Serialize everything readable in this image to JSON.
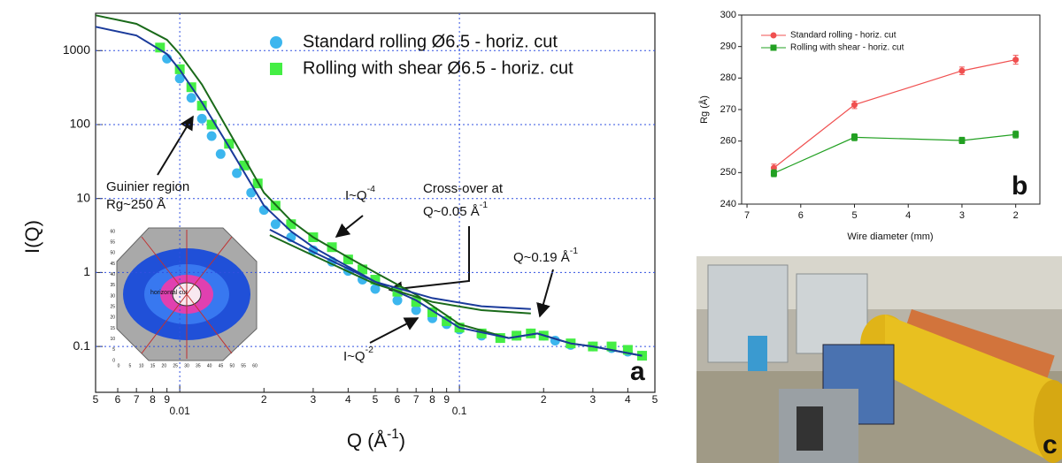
{
  "chart_data": [
    {
      "type": "scatter",
      "xscale": "log",
      "yscale": "log",
      "grid": true,
      "legend": "upper center",
      "xlabel": {
        "text": "Q (Å",
        "sup": "-1",
        "tail": ")"
      },
      "ylabel": "I(Q)",
      "panel_label": "a",
      "xlim": [
        0.005,
        0.5
      ],
      "ylim": [
        0.024,
        3200
      ],
      "xticks": [
        {
          "value": 0.005,
          "label": "5"
        },
        {
          "value": 0.006,
          "label": "6"
        },
        {
          "value": 0.007,
          "label": "7"
        },
        {
          "value": 0.008,
          "label": "8"
        },
        {
          "value": 0.009,
          "label": "9"
        },
        {
          "value": 0.01,
          "label": "0.01"
        },
        {
          "value": 0.02,
          "label": "2"
        },
        {
          "value": 0.03,
          "label": "3"
        },
        {
          "value": 0.04,
          "label": "4"
        },
        {
          "value": 0.05,
          "label": "5"
        },
        {
          "value": 0.06,
          "label": "6"
        },
        {
          "value": 0.07,
          "label": "7"
        },
        {
          "value": 0.08,
          "label": "8"
        },
        {
          "value": 0.09,
          "label": "9"
        },
        {
          "value": 0.1,
          "label": "0.1"
        },
        {
          "value": 0.2,
          "label": "2"
        },
        {
          "value": 0.3,
          "label": "3"
        },
        {
          "value": 0.4,
          "label": "4"
        },
        {
          "value": 0.5,
          "label": "5"
        }
      ],
      "yticks": [
        0.1,
        1,
        10,
        100,
        1000
      ],
      "series": [
        {
          "name": "Standard rolling Ø6.5 - horiz. cut",
          "color": "#3cb6ee",
          "marker": "circle",
          "x": [
            0.009,
            0.01,
            0.011,
            0.012,
            0.013,
            0.014,
            0.016,
            0.018,
            0.02,
            0.022,
            0.025,
            0.03,
            0.035,
            0.04,
            0.045,
            0.05,
            0.06,
            0.07,
            0.08,
            0.09,
            0.1,
            0.12,
            0.14,
            0.16,
            0.18,
            0.2,
            0.22,
            0.25,
            0.3,
            0.35,
            0.4,
            0.45
          ],
          "values": [
            780,
            420,
            230,
            120,
            70,
            40,
            22,
            12,
            7,
            4.5,
            3,
            2,
            1.4,
            1.05,
            0.8,
            0.6,
            0.42,
            0.31,
            0.24,
            0.2,
            0.17,
            0.14,
            0.13,
            0.14,
            0.15,
            0.14,
            0.12,
            0.105,
            0.1,
            0.095,
            0.085,
            0.075
          ]
        },
        {
          "name": "Rolling with shear Ø6.5 - horiz. cut",
          "color": "#44ee44",
          "marker": "square",
          "x": [
            0.0085,
            0.01,
            0.011,
            0.012,
            0.013,
            0.015,
            0.017,
            0.019,
            0.022,
            0.025,
            0.03,
            0.035,
            0.04,
            0.045,
            0.05,
            0.06,
            0.07,
            0.08,
            0.09,
            0.1,
            0.12,
            0.14,
            0.16,
            0.18,
            0.2,
            0.25,
            0.3,
            0.35,
            0.4,
            0.45
          ],
          "values": [
            1100,
            560,
            320,
            180,
            100,
            55,
            28,
            16,
            8,
            4.5,
            3,
            2.2,
            1.5,
            1.1,
            0.8,
            0.55,
            0.4,
            0.29,
            0.22,
            0.18,
            0.15,
            0.13,
            0.14,
            0.15,
            0.14,
            0.11,
            0.1,
            0.1,
            0.09,
            0.075
          ]
        }
      ],
      "fits": [
        {
          "color": "#1a6a1a",
          "x": [
            0.005,
            0.007,
            0.009,
            0.01,
            0.012,
            0.015,
            0.02,
            0.025,
            0.03,
            0.04,
            0.05,
            0.07,
            0.1,
            0.15,
            0.19,
            0.25,
            0.3,
            0.45
          ],
          "values": [
            3000,
            2300,
            1400,
            900,
            350,
            80,
            12,
            5,
            3,
            1.6,
            1,
            0.5,
            0.2,
            0.13,
            0.15,
            0.11,
            0.1,
            0.075
          ]
        },
        {
          "color": "#1a3a9a",
          "x": [
            0.005,
            0.007,
            0.009,
            0.01,
            0.012,
            0.015,
            0.02,
            0.025,
            0.03,
            0.04,
            0.05,
            0.07,
            0.1,
            0.15,
            0.19,
            0.25,
            0.3,
            0.45
          ],
          "values": [
            2100,
            1600,
            900,
            550,
            200,
            50,
            8,
            3.6,
            2.2,
            1.2,
            0.75,
            0.42,
            0.18,
            0.13,
            0.15,
            0.11,
            0.1,
            0.075
          ]
        },
        {
          "color": "#1a3a9a",
          "x": [
            0.021,
            0.03,
            0.05,
            0.08,
            0.12,
            0.18
          ],
          "values": [
            3.8,
            1.9,
            0.75,
            0.45,
            0.35,
            0.32
          ]
        },
        {
          "color": "#1a6a1a",
          "x": [
            0.021,
            0.03,
            0.05,
            0.08,
            0.12,
            0.18
          ],
          "values": [
            3.2,
            1.7,
            0.7,
            0.4,
            0.31,
            0.28
          ]
        }
      ],
      "annotations": [
        {
          "text": "Guinier region"
        },
        {
          "text": "Rg~250 Å"
        },
        {
          "text": "I~Q",
          "sup": "-4"
        },
        {
          "text": "Cross-over at"
        },
        {
          "text": "Q~0.05 Å",
          "sup": "-1"
        },
        {
          "text": "Q~0.19 Å",
          "sup": "-1"
        },
        {
          "text": "I~Q",
          "sup": "-2"
        }
      ],
      "inset": {
        "label": "horizontal cut",
        "xticks": [
          0,
          5,
          10,
          15,
          20,
          25,
          30,
          35,
          40,
          45,
          50,
          55,
          60
        ],
        "yticks": [
          0,
          5,
          10,
          15,
          20,
          25,
          30,
          35,
          40,
          45,
          50,
          55,
          60
        ]
      }
    },
    {
      "type": "line",
      "xlabel": "Wire diameter (mm)",
      "ylabel": "Rg (Å)",
      "panel_label": "b",
      "legend": "upper left",
      "xlim": [
        7.1,
        1.55
      ],
      "ylim": [
        240,
        300
      ],
      "xticks": [
        7,
        6,
        5,
        4,
        3,
        2
      ],
      "yticks": [
        240,
        250,
        260,
        270,
        280,
        290,
        300
      ],
      "series": [
        {
          "name": "Standard rolling - horiz. cut",
          "color": "#f05050",
          "marker": "circle",
          "x": [
            6.5,
            5,
            3,
            2
          ],
          "values": [
            251.5,
            271.5,
            282.3,
            285.8
          ],
          "errors": [
            1.2,
            1.2,
            1.2,
            1.4
          ]
        },
        {
          "name": "Rolling with shear - horiz. cut",
          "color": "#22a022",
          "marker": "square",
          "x": [
            6.5,
            5,
            3,
            2
          ],
          "values": [
            249.8,
            261.2,
            260.2,
            262.1
          ],
          "errors": [
            1.1,
            1.1,
            1.0,
            1.1
          ]
        }
      ]
    }
  ],
  "photo": {
    "label": "c"
  }
}
